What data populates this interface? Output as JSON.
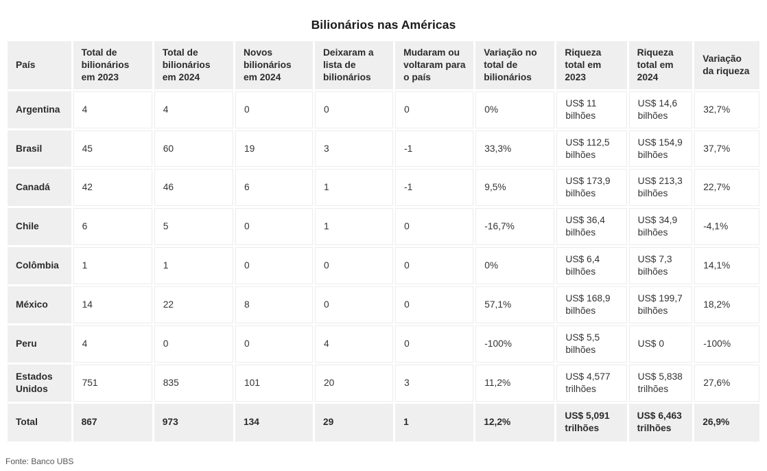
{
  "title": "Bilionários nas Américas",
  "source": "Fonte: Banco UBS",
  "colors": {
    "header_bg": "#efefef",
    "cell_bg": "#ffffff",
    "cell_border": "#ececec",
    "text": "#333333",
    "title_text": "#1a1a1a",
    "source_text": "#555555"
  },
  "chart_data": {
    "type": "table",
    "title": "Bilionários nas Américas",
    "columns": [
      "País",
      "Total de bilionários em 2023",
      "Total de bilionários em 2024",
      "Novos bilionários em 2024",
      "Deixaram a lista de bilionários",
      "Mudaram ou voltaram para o país",
      "Variação no total de bilionários",
      "Riqueza total em 2023",
      "Riqueza total em 2024",
      "Variação da riqueza"
    ],
    "rows": [
      [
        "Argentina",
        "4",
        "4",
        "0",
        "0",
        "0",
        "0%",
        "US$ 11 bilhões",
        "US$ 14,6 bilhões",
        "32,7%"
      ],
      [
        "Brasil",
        "45",
        "60",
        "19",
        "3",
        "-1",
        "33,3%",
        "US$ 112,5 bilhões",
        "US$ 154,9 bilhões",
        "37,7%"
      ],
      [
        "Canadá",
        "42",
        "46",
        "6",
        "1",
        "-1",
        "9,5%",
        "US$ 173,9 bilhões",
        "US$ 213,3 bilhões",
        "22,7%"
      ],
      [
        "Chile",
        "6",
        "5",
        "0",
        "1",
        "0",
        "-16,7%",
        "US$ 36,4 bilhões",
        "US$ 34,9 bilhões",
        "-4,1%"
      ],
      [
        "Colômbia",
        "1",
        "1",
        "0",
        "0",
        "0",
        "0%",
        "US$ 6,4 bilhões",
        "US$ 7,3 bilhões",
        "14,1%"
      ],
      [
        "México",
        "14",
        "22",
        "8",
        "0",
        "0",
        "57,1%",
        "US$ 168,9 bilhões",
        "US$ 199,7 bilhões",
        "18,2%"
      ],
      [
        "Peru",
        "4",
        "0",
        "0",
        "4",
        "0",
        "-100%",
        "US$ 5,5 bilhões",
        "US$ 0",
        "-100%"
      ],
      [
        "Estados Unidos",
        "751",
        "835",
        "101",
        "20",
        "3",
        "11,2%",
        "US$ 4,577 trilhões",
        "US$ 5,838 trilhões",
        "27,6%"
      ]
    ],
    "total_row": [
      "Total",
      "867",
      "973",
      "134",
      "29",
      "1",
      "12,2%",
      "US$ 5,091 trilhões",
      "US$ 6,463 trilhões",
      "26,9%"
    ],
    "source": "Fonte: Banco UBS",
    "column_widths_percent": [
      8.6,
      10.7,
      10.7,
      10.5,
      10.6,
      10.6,
      10.7,
      9.5,
      8.6,
      8.8
    ]
  }
}
